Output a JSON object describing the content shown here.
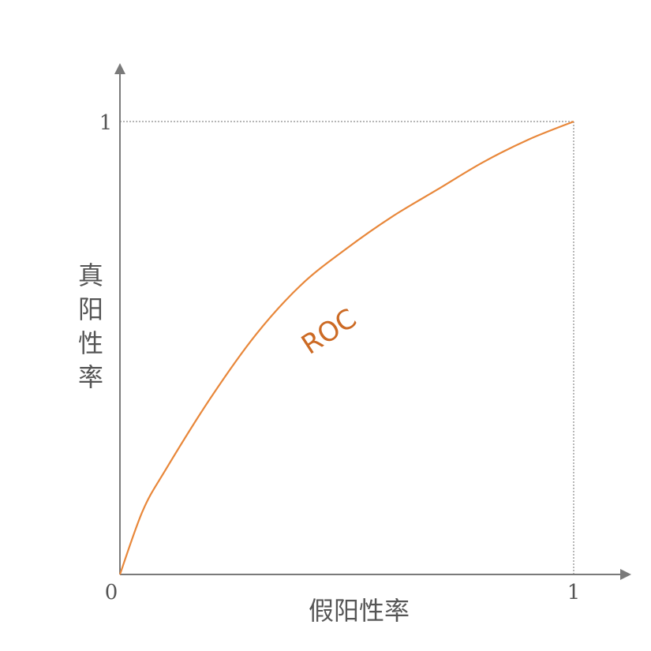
{
  "chart_data": {
    "type": "line",
    "xlabel": "假阳性率",
    "ylabel": "真阳性率",
    "x_ticks": [
      "0",
      "1"
    ],
    "y_ticks": [
      "1"
    ],
    "xlim": [
      0,
      1
    ],
    "ylim": [
      0,
      1
    ],
    "grid": false,
    "reference_lines": {
      "x": 1,
      "y": 1,
      "style": "dotted"
    },
    "series": [
      {
        "name": "ROC",
        "color": "#e8873a",
        "x": [
          0,
          0.05,
          0.1,
          0.2,
          0.3,
          0.4,
          0.5,
          0.6,
          0.7,
          0.8,
          0.9,
          1.0
        ],
        "y": [
          0,
          0.14,
          0.23,
          0.39,
          0.53,
          0.64,
          0.72,
          0.79,
          0.85,
          0.91,
          0.96,
          1.0
        ]
      }
    ]
  }
}
